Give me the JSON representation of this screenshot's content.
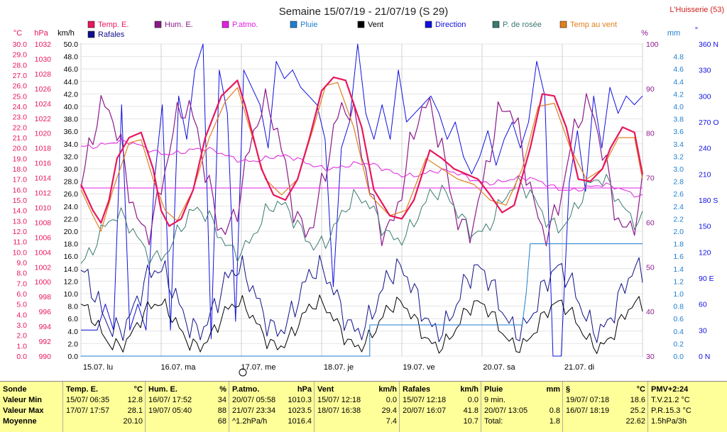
{
  "title": "Semaine 15/07/19 - 21/07/19 (S 29)",
  "station": "L'Huisserie (53)",
  "colors": {
    "temp": "#e8175d",
    "hum": "#8b1a8b",
    "patmo": "#e020e0",
    "pluie": "#1e7fd0",
    "vent": "#000000",
    "direction": "#1010e0",
    "rosee": "#3a7a70",
    "tvent": "#e08020",
    "rafales": "#10108a"
  },
  "legend": [
    {
      "label": "Temp. E.",
      "color": "#e8175d"
    },
    {
      "label": "Hum. E.",
      "color": "#8b1a8b"
    },
    {
      "label": "P.atmo.",
      "color": "#e020e0"
    },
    {
      "label": "Pluie",
      "color": "#1e7fd0"
    },
    {
      "label": "Vent",
      "color": "#000000"
    },
    {
      "label": "Direction",
      "color": "#1010e0"
    },
    {
      "label": "P. de rosée",
      "color": "#3a7a70"
    },
    {
      "label": "Temp au vent",
      "color": "#e08020"
    },
    {
      "label": "Rafales",
      "color": "#10108a"
    }
  ],
  "axis_units": {
    "temp": "°C",
    "patmo": "hPa",
    "wind": "km/h",
    "hum": "%",
    "rain": "mm",
    "dir": "°"
  },
  "axis_ticks": {
    "temp": [
      "30.0",
      "29.0",
      "28.0",
      "27.0",
      "26.0",
      "25.0",
      "24.0",
      "23.0",
      "22.0",
      "21.0",
      "20.0",
      "19.0",
      "18.0",
      "17.0",
      "16.0",
      "15.0",
      "14.0",
      "13.0",
      "12.0",
      "11.0",
      "10.0",
      "9.0",
      "8.0",
      "7.0",
      "6.0",
      "5.0",
      "4.0",
      "3.0",
      "2.0",
      "1.0",
      "0.0"
    ],
    "patmo": [
      "1032",
      "1030",
      "1028",
      "1026",
      "1024",
      "1022",
      "1020",
      "1018",
      "1016",
      "1014",
      "1012",
      "1010",
      "1008",
      "1006",
      "1004",
      "1002",
      "1000",
      "998",
      "996",
      "994",
      "992",
      "990"
    ],
    "wind": [
      "50.0",
      "48.0",
      "46.0",
      "44.0",
      "42.0",
      "40.0",
      "38.0",
      "36.0",
      "34.0",
      "32.0",
      "30.0",
      "28.0",
      "26.0",
      "24.0",
      "22.0",
      "20.0",
      "18.0",
      "16.0",
      "14.0",
      "12.0",
      "10.0",
      "8.0",
      "6.0",
      "4.0",
      "2.0",
      "0.0"
    ],
    "hum": [
      "100",
      "90",
      "80",
      "70",
      "60",
      "50",
      "40",
      "30"
    ],
    "rain": [
      "4.8",
      "4.6",
      "4.4",
      "4.2",
      "4.0",
      "3.8",
      "3.6",
      "3.4",
      "3.2",
      "3.0",
      "2.8",
      "2.6",
      "2.4",
      "2.2",
      "2.0",
      "1.8",
      "1.6",
      "1.4",
      "1.2",
      "1.0",
      "0.8",
      "0.6",
      "0.4",
      "0.2",
      "0.0"
    ],
    "dir": [
      "360 N",
      "330",
      "300",
      "270 O",
      "240",
      "210",
      "180 S",
      "150",
      "120",
      "90 E",
      "60",
      "30",
      "0 N"
    ]
  },
  "day_labels": [
    "15.07. lu",
    "16.07. ma",
    "17.07. me",
    "18.07. je",
    "19.07. ve",
    "20.07. sa",
    "21.07. di"
  ],
  "chart_data": {
    "type": "line",
    "title": "Semaine 15/07/19 - 21/07/19 (S 29)",
    "x_unit": "day",
    "x_range": [
      0,
      7
    ],
    "grid": true,
    "series": [
      {
        "name": "Temp. E.",
        "unit": "°C",
        "points": [
          [
            0,
            16.5
          ],
          [
            0.15,
            14
          ],
          [
            0.25,
            12.8
          ],
          [
            0.35,
            15
          ],
          [
            0.45,
            19
          ],
          [
            0.6,
            21
          ],
          [
            0.75,
            21.5
          ],
          [
            0.9,
            18
          ],
          [
            1.0,
            14
          ],
          [
            1.1,
            12.5
          ],
          [
            1.25,
            13.2
          ],
          [
            1.4,
            16
          ],
          [
            1.55,
            21
          ],
          [
            1.75,
            25
          ],
          [
            1.95,
            26.5
          ],
          [
            2.05,
            24
          ],
          [
            2.25,
            18
          ],
          [
            2.4,
            15.5
          ],
          [
            2.55,
            15
          ],
          [
            2.7,
            17
          ],
          [
            2.85,
            21
          ],
          [
            3.0,
            25.5
          ],
          [
            3.15,
            26.8
          ],
          [
            3.3,
            26.5
          ],
          [
            3.5,
            22
          ],
          [
            3.65,
            16
          ],
          [
            3.85,
            13.5
          ],
          [
            4.0,
            13.2
          ],
          [
            4.15,
            15
          ],
          [
            4.35,
            19.8
          ],
          [
            4.5,
            19
          ],
          [
            4.65,
            18
          ],
          [
            4.8,
            17.5
          ],
          [
            4.95,
            17
          ],
          [
            5.1,
            15.5
          ],
          [
            5.25,
            13.8
          ],
          [
            5.4,
            14.5
          ],
          [
            5.6,
            20
          ],
          [
            5.75,
            25.2
          ],
          [
            5.9,
            25
          ],
          [
            6.05,
            22
          ],
          [
            6.2,
            17
          ],
          [
            6.35,
            16.8
          ],
          [
            6.5,
            18
          ],
          [
            6.6,
            20
          ],
          [
            6.75,
            22
          ],
          [
            6.9,
            21.5
          ],
          [
            7.0,
            17.5
          ]
        ]
      },
      {
        "name": "Temp au vent",
        "unit": "°C",
        "points": [
          [
            0,
            16
          ],
          [
            0.15,
            13.5
          ],
          [
            0.25,
            12
          ],
          [
            0.4,
            16
          ],
          [
            0.6,
            20.5
          ],
          [
            0.75,
            20.8
          ],
          [
            0.9,
            17
          ],
          [
            1.05,
            14
          ],
          [
            1.2,
            13
          ],
          [
            1.4,
            16
          ],
          [
            1.6,
            21
          ],
          [
            1.8,
            24.5
          ],
          [
            1.95,
            25.8
          ],
          [
            2.1,
            22
          ],
          [
            2.3,
            17
          ],
          [
            2.5,
            15.5
          ],
          [
            2.7,
            17
          ],
          [
            2.9,
            22
          ],
          [
            3.05,
            26
          ],
          [
            3.2,
            26.3
          ],
          [
            3.4,
            22
          ],
          [
            3.6,
            15.5
          ],
          [
            3.85,
            13.5
          ],
          [
            4.05,
            14
          ],
          [
            4.3,
            19
          ],
          [
            4.5,
            18
          ],
          [
            4.7,
            17
          ],
          [
            4.9,
            16.5
          ],
          [
            5.1,
            15
          ],
          [
            5.3,
            14.5
          ],
          [
            5.5,
            18
          ],
          [
            5.7,
            24
          ],
          [
            5.9,
            24.3
          ],
          [
            6.1,
            20
          ],
          [
            6.3,
            17
          ],
          [
            6.5,
            18
          ],
          [
            6.7,
            21
          ],
          [
            6.9,
            21
          ],
          [
            7.0,
            17
          ]
        ]
      }
    ]
  },
  "stats": {
    "row_labels": [
      "Sonde",
      "Valeur Min",
      "Valeur Max",
      "Moyenne"
    ],
    "columns": [
      {
        "name": "Temp. E.",
        "unit": "°C",
        "min_date": "15/07/ 06:35",
        "min": "12.8",
        "max_date": "17/07/ 17:57",
        "max": "28.1",
        "avg": "20.10"
      },
      {
        "name": "Hum. E.",
        "unit": "%",
        "min_date": "16/07/ 17:52",
        "min": "34",
        "max_date": "19/07/ 05:40",
        "max": "88",
        "avg": "68"
      },
      {
        "name": "P.atmo.",
        "unit": "hPa",
        "min_date": "20/07/ 05:58",
        "min": "1010.3",
        "max_date": "21/07/ 23:34",
        "max": "1023.5",
        "avg_label": "^1.2hPa/h",
        "avg": "1016.4"
      },
      {
        "name": "Vent",
        "unit": "km/h",
        "min_date": "15/07/ 12:18",
        "min": "0.0",
        "max_date": "18/07/ 16:38",
        "max": "29.4",
        "avg": "7.4"
      },
      {
        "name": "Rafales",
        "unit": "km/h",
        "min_date": "15/07/ 12:18",
        "min": "0.0",
        "max_date": "20/07/ 16:07",
        "max": "41.8",
        "avg": "10.7"
      },
      {
        "name": "Pluie",
        "unit": "mm",
        "min_date": "9 min.",
        "min": "",
        "max_date": "20/07/ 13:05",
        "max": "0.8",
        "avg_label": "Total:",
        "avg": "1.8"
      },
      {
        "name": "§",
        "unit": "°C",
        "min_date": "19/07/ 07:18",
        "min": "18.6",
        "max_date": "16/07/ 18:19",
        "max": "25.2",
        "avg": "22.62"
      },
      {
        "name": "PMV+2:24",
        "unit": "",
        "min_date": "T.V.21.2 °C",
        "min": "",
        "max_date": "P.R.15.3 °C",
        "max": "",
        "avg_label": "1.5hPa/3h",
        "avg": ""
      }
    ]
  }
}
